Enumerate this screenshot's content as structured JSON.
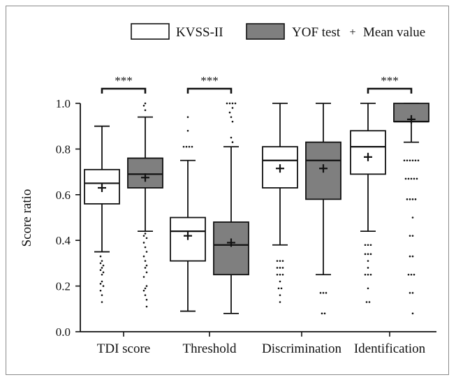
{
  "chart_data": {
    "type": "boxplot",
    "title": "",
    "xlabel": "",
    "ylabel": "Score ratio",
    "ylim": [
      0.0,
      1.0
    ],
    "yticks": [
      "0.0",
      "0.2",
      "0.4",
      "0.6",
      "0.8",
      "1.0"
    ],
    "categories": [
      "TDI score",
      "Threshold",
      "Discrimination",
      "Identification"
    ],
    "legend": {
      "position": "top-right",
      "series": [
        "KVSS-II",
        "YOF test"
      ],
      "mean_label": "Mean value",
      "mean_symbol": "+"
    },
    "colors": {
      "kvss": "#ffffff",
      "yof": "#7f7f7f",
      "line": "#111111"
    },
    "boxes": [
      {
        "category": "TDI score",
        "series": "KVSS-II",
        "whisker_low": 0.35,
        "q1": 0.56,
        "median": 0.65,
        "q3": 0.71,
        "whisker_high": 0.9,
        "mean": 0.63,
        "outliers": [
          0.33,
          0.31,
          0.3,
          0.29,
          0.28,
          0.27,
          0.26,
          0.25,
          0.22,
          0.21,
          0.2,
          0.18,
          0.16,
          0.13
        ]
      },
      {
        "category": "TDI score",
        "series": "YOF test",
        "whisker_low": 0.44,
        "q1": 0.63,
        "median": 0.69,
        "q3": 0.76,
        "whisker_high": 0.94,
        "mean": 0.675,
        "outliers": [
          1.0,
          0.99,
          0.97,
          0.43,
          0.42,
          0.41,
          0.39,
          0.37,
          0.35,
          0.33,
          0.31,
          0.29,
          0.28,
          0.26,
          0.24,
          0.2,
          0.19,
          0.18,
          0.16,
          0.14,
          0.11
        ]
      },
      {
        "category": "Threshold",
        "series": "KVSS-II",
        "whisker_low": 0.09,
        "q1": 0.31,
        "median": 0.44,
        "q3": 0.5,
        "whisker_high": 0.75,
        "mean": 0.42,
        "outliers": [
          0.94,
          0.88,
          0.81,
          0.81,
          0.81,
          0.81
        ]
      },
      {
        "category": "Threshold",
        "series": "YOF test",
        "whisker_low": 0.08,
        "q1": 0.25,
        "median": 0.38,
        "q3": 0.48,
        "whisker_high": 0.81,
        "mean": 0.39,
        "outliers": [
          1.0,
          1.0,
          1.0,
          1.0,
          0.98,
          0.96,
          0.94,
          0.92,
          0.85,
          0.83
        ]
      },
      {
        "category": "Discrimination",
        "series": "KVSS-II",
        "whisker_low": 0.38,
        "q1": 0.63,
        "median": 0.75,
        "q3": 0.81,
        "whisker_high": 1.0,
        "mean": 0.715,
        "outliers": [
          0.31,
          0.31,
          0.31,
          0.28,
          0.28,
          0.28,
          0.25,
          0.25,
          0.25,
          0.22,
          0.19,
          0.19,
          0.16,
          0.13
        ]
      },
      {
        "category": "Discrimination",
        "series": "YOF test",
        "whisker_low": 0.25,
        "q1": 0.58,
        "median": 0.75,
        "q3": 0.83,
        "whisker_high": 1.0,
        "mean": 0.715,
        "outliers": [
          0.17,
          0.17,
          0.17,
          0.08,
          0.08
        ]
      },
      {
        "category": "Identification",
        "series": "KVSS-II",
        "whisker_low": 0.44,
        "q1": 0.69,
        "median": 0.81,
        "q3": 0.88,
        "whisker_high": 1.0,
        "mean": 0.765,
        "outliers": [
          0.38,
          0.38,
          0.38,
          0.34,
          0.34,
          0.34,
          0.31,
          0.28,
          0.25,
          0.25,
          0.25,
          0.19,
          0.13,
          0.13
        ]
      },
      {
        "category": "Identification",
        "series": "YOF test",
        "whisker_low": 0.83,
        "q1": 0.92,
        "median": 0.92,
        "q3": 1.0,
        "whisker_high": 1.0,
        "mean": 0.93,
        "outliers": [
          0.75,
          0.75,
          0.75,
          0.75,
          0.75,
          0.75,
          0.67,
          0.67,
          0.67,
          0.67,
          0.67,
          0.58,
          0.58,
          0.58,
          0.58,
          0.5,
          0.42,
          0.42,
          0.33,
          0.33,
          0.25,
          0.25,
          0.25,
          0.17,
          0.17,
          0.08
        ]
      }
    ],
    "significance": [
      {
        "category": "TDI score",
        "label": "***"
      },
      {
        "category": "Threshold",
        "label": "***"
      },
      {
        "category": "Identification",
        "label": "***"
      }
    ]
  }
}
